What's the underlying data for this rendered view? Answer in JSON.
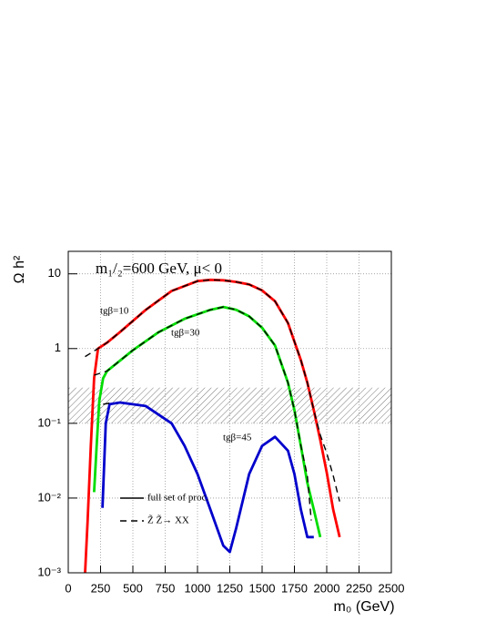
{
  "chart_data": {
    "type": "line",
    "title": "m₁/₂=600 GeV, μ< 0",
    "xlabel": "m₀ (GeV)",
    "ylabel": "Ω h²",
    "xlim": [
      0,
      2500
    ],
    "xticks": [
      0,
      250,
      500,
      750,
      1000,
      1250,
      1500,
      1750,
      2000,
      2250,
      2500
    ],
    "ylim": [
      0.001,
      20
    ],
    "yticks": [
      {
        "value": 0.001,
        "label": "10⁻³"
      },
      {
        "value": 0.01,
        "label": "10⁻²"
      },
      {
        "value": 0.1,
        "label": "10⁻¹"
      },
      1,
      10
    ],
    "log_y": true,
    "grid": true,
    "band": [
      0.1,
      0.3
    ],
    "annotations": [
      "tgβ=10",
      "tgβ=30",
      "tgβ=45"
    ],
    "legend": [
      {
        "label": "full set of proc.",
        "style": "solid"
      },
      {
        "label": "Z̃ Z̃→ XX",
        "style": "dashed"
      }
    ],
    "series": [
      {
        "name": "tgβ=10",
        "color": "#ff0000",
        "style": "solid",
        "x": [
          130,
          150,
          175,
          200,
          230,
          300,
          400,
          600,
          800,
          1000,
          1100,
          1200,
          1300,
          1400,
          1500,
          1600,
          1700,
          1800,
          1850,
          1900,
          1950,
          2000,
          2050,
          2100
        ],
        "values": [
          0.001,
          0.005,
          0.05,
          0.4,
          1.0,
          1.2,
          1.66,
          3.3,
          5.9,
          8.0,
          8.3,
          8.2,
          7.8,
          7.2,
          6.0,
          4.3,
          2.2,
          0.7,
          0.35,
          0.15,
          0.06,
          0.022,
          0.007,
          0.003
        ]
      },
      {
        "name": "tgβ=30",
        "color": "#00dd00",
        "style": "solid",
        "x": [
          200,
          220,
          240,
          270,
          300,
          500,
          700,
          900,
          1100,
          1200,
          1300,
          1400,
          1500,
          1600,
          1700,
          1750,
          1800,
          1850,
          1900,
          1950
        ],
        "values": [
          0.012,
          0.05,
          0.2,
          0.4,
          0.5,
          0.95,
          1.66,
          2.5,
          3.3,
          3.6,
          3.3,
          2.7,
          1.9,
          1.1,
          0.35,
          0.15,
          0.05,
          0.016,
          0.007,
          0.003
        ]
      },
      {
        "name": "tgβ=45",
        "color": "#0000cc",
        "style": "solid",
        "x": [
          265,
          290,
          320,
          400,
          600,
          800,
          900,
          1000,
          1100,
          1200,
          1250,
          1300,
          1400,
          1500,
          1600,
          1700,
          1750,
          1800,
          1850,
          1900
        ],
        "values": [
          0.0074,
          0.1,
          0.18,
          0.19,
          0.17,
          0.1,
          0.05,
          0.021,
          0.007,
          0.0023,
          0.0019,
          0.004,
          0.021,
          0.05,
          0.066,
          0.043,
          0.021,
          0.007,
          0.003,
          0.003
        ]
      },
      {
        "color": "#000000",
        "style": "dashed",
        "x": [
          130,
          230,
          300,
          400,
          600,
          800,
          1000,
          1100,
          1200,
          1300,
          1400,
          1500,
          1600,
          1700,
          1800,
          1850,
          1900,
          1950,
          2000,
          2050,
          2100
        ],
        "values": [
          0.78,
          1.0,
          1.2,
          1.66,
          3.3,
          5.9,
          8.0,
          8.3,
          8.2,
          7.8,
          7.2,
          6.0,
          4.3,
          2.2,
          0.7,
          0.35,
          0.15,
          0.07,
          0.04,
          0.02,
          0.009
        ]
      },
      {
        "color": "#000000",
        "style": "dashed",
        "x": [
          200,
          300,
          500,
          700,
          900,
          1100,
          1200,
          1300,
          1400,
          1500,
          1600,
          1700,
          1750,
          1800,
          1850,
          1880
        ],
        "values": [
          0.44,
          0.5,
          0.95,
          1.66,
          2.5,
          3.3,
          3.6,
          3.3,
          2.7,
          1.9,
          1.1,
          0.35,
          0.15,
          0.05,
          0.02,
          0.005
        ]
      },
      {
        "color": "#000000",
        "style": "dashed",
        "x": [
          270,
          350
        ],
        "values": [
          0.18,
          0.19
        ]
      }
    ]
  }
}
